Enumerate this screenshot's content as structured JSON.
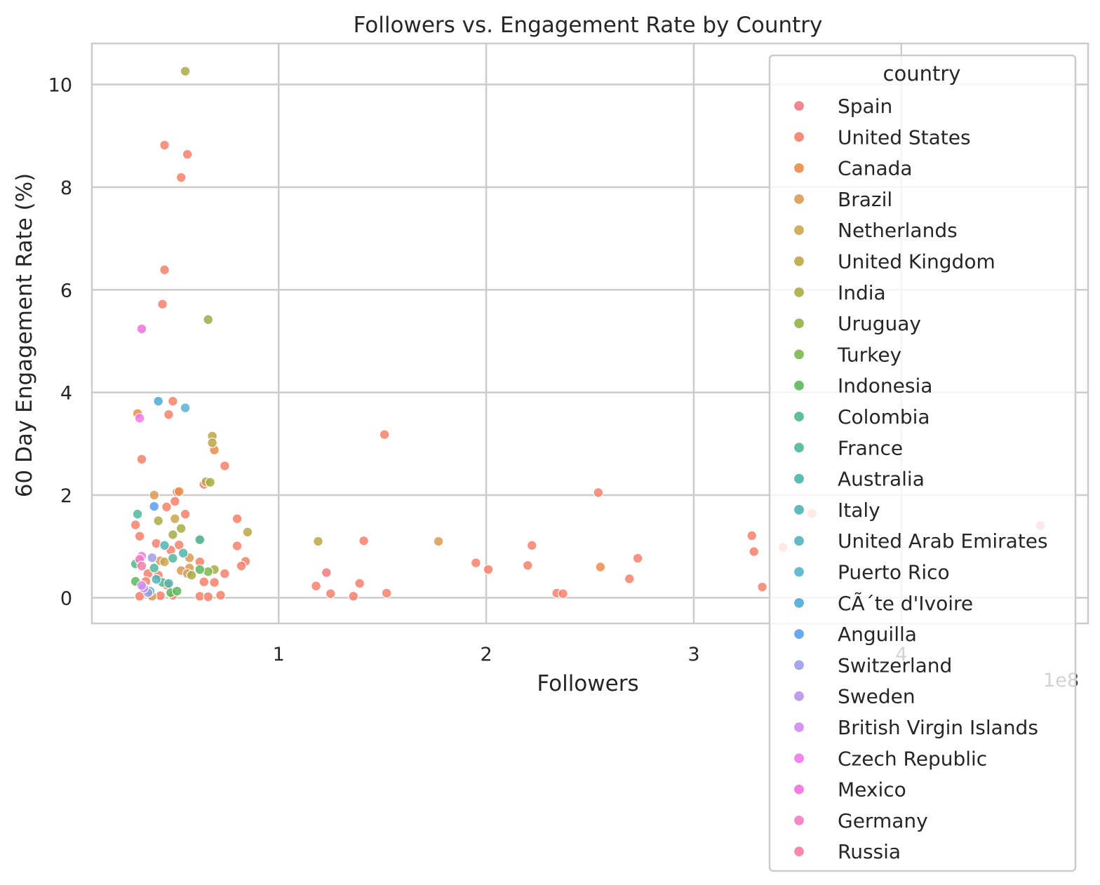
{
  "chart_data": {
    "type": "scatter",
    "title": "Followers vs. Engagement Rate by Country",
    "xlabel": "Followers",
    "ylabel": "60 Day Engagement Rate (%)",
    "x_scale_note": "1e8",
    "xlim": [
      10000000,
      490000000
    ],
    "ylim": [
      -0.5,
      10.8
    ],
    "xticks": [
      {
        "value": 100000000,
        "label": "1"
      },
      {
        "value": 200000000,
        "label": "2"
      },
      {
        "value": 300000000,
        "label": "3"
      },
      {
        "value": 400000000,
        "label": "4"
      }
    ],
    "yticks": [
      {
        "value": 0,
        "label": "0"
      },
      {
        "value": 2,
        "label": "2"
      },
      {
        "value": 4,
        "label": "4"
      },
      {
        "value": 6,
        "label": "6"
      },
      {
        "value": 8,
        "label": "8"
      },
      {
        "value": 10,
        "label": "10"
      }
    ],
    "grid": true,
    "legend_title": "country",
    "legend_position": "right",
    "series": [
      {
        "name": "Spain",
        "color": "#f0797f",
        "points": [
          [
            123000000,
            0.49
          ],
          [
            467000000,
            1.41
          ]
        ]
      },
      {
        "name": "United States",
        "color": "#f7806c",
        "points": [
          [
            45000000,
            8.82
          ],
          [
            56000000,
            8.64
          ],
          [
            53000000,
            8.19
          ],
          [
            45000000,
            6.39
          ],
          [
            44000000,
            5.72
          ],
          [
            49000000,
            3.83
          ],
          [
            47000000,
            3.57
          ],
          [
            34000000,
            2.7
          ],
          [
            50000000,
            1.88
          ],
          [
            51000000,
            2.06
          ],
          [
            64000000,
            2.21
          ],
          [
            74000000,
            2.57
          ],
          [
            46000000,
            1.77
          ],
          [
            55000000,
            1.63
          ],
          [
            80000000,
            1.54
          ],
          [
            151000000,
            3.18
          ],
          [
            254000000,
            2.05
          ],
          [
            31000000,
            1.42
          ],
          [
            33000000,
            1.2
          ],
          [
            41000000,
            1.06
          ],
          [
            52000000,
            1.03
          ],
          [
            80000000,
            1.01
          ],
          [
            84000000,
            0.71
          ],
          [
            82000000,
            0.62
          ],
          [
            48000000,
            0.93
          ],
          [
            62000000,
            0.7
          ],
          [
            74000000,
            0.47
          ],
          [
            37000000,
            0.47
          ],
          [
            64000000,
            0.31
          ],
          [
            69000000,
            0.3
          ],
          [
            36000000,
            0.32
          ],
          [
            42000000,
            0.44
          ],
          [
            46000000,
            0.25
          ],
          [
            49000000,
            0.05
          ],
          [
            62000000,
            0.03
          ],
          [
            66000000,
            0.02
          ],
          [
            72000000,
            0.05
          ],
          [
            33000000,
            0.03
          ],
          [
            43000000,
            0.04
          ],
          [
            141000000,
            1.11
          ],
          [
            118000000,
            0.23
          ],
          [
            125000000,
            0.08
          ],
          [
            139000000,
            0.28
          ],
          [
            136000000,
            0.03
          ],
          [
            152000000,
            0.09
          ],
          [
            195000000,
            0.68
          ],
          [
            201000000,
            0.55
          ],
          [
            220000000,
            0.63
          ],
          [
            222000000,
            1.02
          ],
          [
            234000000,
            0.09
          ],
          [
            237000000,
            0.08
          ],
          [
            269000000,
            0.37
          ],
          [
            273000000,
            0.77
          ],
          [
            328000000,
            1.21
          ],
          [
            329000000,
            0.9
          ],
          [
            333000000,
            0.21
          ],
          [
            343000000,
            0.98
          ],
          [
            357000000,
            1.64
          ]
        ]
      },
      {
        "name": "Canada",
        "color": "#ec8c4a",
        "points": [
          [
            32000000,
            3.59
          ],
          [
            69000000,
            2.88
          ],
          [
            52000000,
            2.07
          ],
          [
            255000000,
            0.6
          ]
        ]
      },
      {
        "name": "Brazil",
        "color": "#dc9a52",
        "points": [
          [
            40000000,
            2.0
          ],
          [
            57000000,
            0.78
          ],
          [
            43000000,
            0.72
          ],
          [
            57000000,
            0.58
          ],
          [
            177000000,
            1.1
          ],
          [
            53000000,
            0.53
          ],
          [
            56000000,
            0.47
          ],
          [
            39000000,
            0.03
          ]
        ]
      },
      {
        "name": "Netherlands",
        "color": "#cda64f",
        "points": [
          [
            50000000,
            1.54
          ],
          [
            45000000,
            0.7
          ]
        ]
      },
      {
        "name": "United Kingdom",
        "color": "#bca645",
        "points": [
          [
            68000000,
            3.15
          ],
          [
            68000000,
            3.02
          ],
          [
            65000000,
            2.26
          ],
          [
            119000000,
            1.1
          ],
          [
            85000000,
            1.28
          ]
        ]
      },
      {
        "name": "India",
        "color": "#a8ac46",
        "points": [
          [
            55000000,
            10.26
          ],
          [
            67000000,
            2.25
          ],
          [
            42000000,
            1.5
          ],
          [
            53000000,
            1.35
          ],
          [
            49000000,
            1.23
          ],
          [
            62000000,
            1.15
          ],
          [
            58000000,
            0.44
          ],
          [
            69000000,
            0.55
          ]
        ]
      },
      {
        "name": "Uruguay",
        "color": "#93b048",
        "points": [
          [
            66000000,
            5.42
          ]
        ]
      },
      {
        "name": "Turkey",
        "color": "#7db84e",
        "points": [
          [
            66000000,
            0.51
          ]
        ]
      },
      {
        "name": "Indonesia",
        "color": "#5ab95c",
        "points": [
          [
            31000000,
            0.32
          ],
          [
            48000000,
            0.1
          ],
          [
            62000000,
            0.55
          ],
          [
            51000000,
            0.13
          ]
        ]
      },
      {
        "name": "Colombia",
        "color": "#4fb88a",
        "points": [
          [
            31000000,
            0.66
          ],
          [
            44000000,
            0.3
          ]
        ]
      },
      {
        "name": "France",
        "color": "#4fb79c",
        "points": [
          [
            32000000,
            1.63
          ],
          [
            49000000,
            0.77
          ],
          [
            62000000,
            1.13
          ],
          [
            40000000,
            0.58
          ]
        ]
      },
      {
        "name": "Australia",
        "color": "#4db4a9",
        "points": [
          [
            54000000,
            0.87
          ],
          [
            47000000,
            0.28
          ]
        ]
      },
      {
        "name": "Italy",
        "color": "#50b2b5",
        "points": [
          [
            45000000,
            1.02
          ],
          [
            41000000,
            0.36
          ]
        ]
      },
      {
        "name": "United Arab Emirates",
        "color": "#53b1c1",
        "points": [
          [
            38000000,
            0.13
          ]
        ]
      },
      {
        "name": "Puerto Rico",
        "color": "#5ab2cf",
        "points": [
          [
            55000000,
            3.7
          ]
        ]
      },
      {
        "name": "CÃ´te d'Ivoire",
        "color": "#4fa9d7",
        "points": [
          [
            42000000,
            3.83
          ]
        ]
      },
      {
        "name": "Anguilla",
        "color": "#5b9ef0",
        "points": [
          [
            40000000,
            1.78
          ]
        ]
      },
      {
        "name": "Switzerland",
        "color": "#9d9ce8",
        "points": [
          [
            39000000,
            0.78
          ],
          [
            37000000,
            0.1
          ]
        ]
      },
      {
        "name": "Sweden",
        "color": "#b894ec",
        "points": [
          [
            35000000,
            0.19
          ]
        ]
      },
      {
        "name": "British Virgin Islands",
        "color": "#d28bee",
        "points": [
          [
            34000000,
            0.24
          ]
        ]
      },
      {
        "name": "Czech Republic",
        "color": "#f178ea",
        "points": [
          [
            33000000,
            3.5
          ],
          [
            34000000,
            0.81
          ]
        ]
      },
      {
        "name": "Mexico",
        "color": "#f271d9",
        "points": [
          [
            34000000,
            5.24
          ]
        ]
      },
      {
        "name": "Germany",
        "color": "#f57bc4",
        "points": [
          [
            33000000,
            0.75
          ]
        ]
      },
      {
        "name": "Russia",
        "color": "#f67ca6",
        "points": [
          [
            34000000,
            0.62
          ]
        ]
      }
    ]
  }
}
